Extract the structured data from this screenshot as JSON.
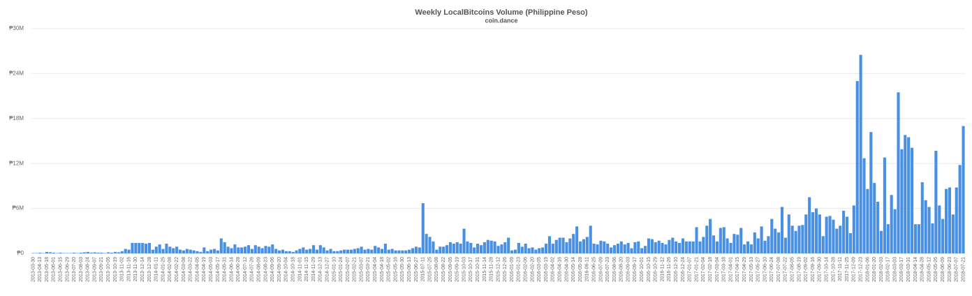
{
  "chart_data": {
    "type": "bar",
    "title": "Weekly LocalBitcoins Volume (Philippine Peso)",
    "subtitle": "coin.dance",
    "color": "#4a90e2",
    "grid": true,
    "ylim": [
      0,
      30000000
    ],
    "yticks": [
      {
        "value": 0,
        "label": "₱0"
      },
      {
        "value": 6000000,
        "label": "₱6M"
      },
      {
        "value": 12000000,
        "label": "₱12M"
      },
      {
        "value": 18000000,
        "label": "₱18M"
      },
      {
        "value": 24000000,
        "label": "₱24M"
      },
      {
        "value": 30000000,
        "label": "₱30M"
      }
    ],
    "categories": [
      "2013-03-30",
      null,
      "2013-04-13",
      null,
      "2013-05-18",
      null,
      "2013-06-01",
      null,
      "2013-06-15",
      null,
      "2013-06-29",
      null,
      "2013-07-20",
      null,
      "2013-08-03",
      null,
      "2013-08-24",
      null,
      "2013-09-07",
      null,
      "2013-09-21",
      null,
      "2013-10-05",
      null,
      "2013-10-19",
      null,
      "2013-11-02",
      null,
      "2013-11-16",
      null,
      "2013-11-30",
      null,
      "2013-12-14",
      null,
      "2013-12-28",
      null,
      "2014-01-11",
      null,
      "2014-01-25",
      null,
      "2014-02-08",
      null,
      "2014-02-22",
      null,
      "2014-03-08",
      null,
      "2014-03-22",
      null,
      "2014-04-05",
      null,
      "2014-04-19",
      null,
      "2014-05-03",
      null,
      "2014-05-17",
      null,
      "2014-05-31",
      null,
      "2014-06-14",
      null,
      "2014-06-28",
      null,
      "2014-07-12",
      null,
      "2014-07-26",
      null,
      "2014-08-09",
      null,
      "2014-08-23",
      null,
      "2014-09-06",
      null,
      "2014-09-20",
      null,
      "2014-10-04",
      null,
      "2014-10-18",
      null,
      "2014-11-01",
      null,
      "2014-11-15",
      null,
      "2014-11-29",
      null,
      "2014-12-13",
      null,
      "2014-12-27",
      null,
      "2015-01-10",
      null,
      "2015-01-24",
      null,
      "2015-02-07",
      null,
      "2015-02-21",
      null,
      "2015-03-07",
      null,
      "2015-03-21",
      null,
      "2015-04-04",
      null,
      "2015-04-18",
      null,
      "2015-05-02",
      null,
      "2015-05-16",
      null,
      "2015-05-30",
      null,
      "2015-06-13",
      null,
      "2015-06-27",
      null,
      "2015-07-11",
      null,
      "2015-07-25",
      null,
      "2015-08-08",
      null,
      "2015-08-22",
      null,
      "2015-09-05",
      null,
      "2015-09-19",
      null,
      "2015-10-03",
      null,
      "2015-10-17",
      null,
      "2015-10-31",
      null,
      "2015-11-14",
      null,
      "2015-11-28",
      null,
      "2015-12-12",
      null,
      "2015-12-26",
      null,
      "2016-01-09",
      null,
      "2016-01-23",
      null,
      "2016-02-06",
      null,
      "2016-02-20",
      null,
      "2016-03-05",
      null,
      "2016-03-19",
      null,
      "2016-04-02",
      null,
      "2016-04-16",
      null,
      "2016-04-30",
      null,
      "2016-05-14",
      null,
      "2016-05-28",
      null,
      "2016-06-11",
      null,
      "2016-06-25",
      null,
      "2016-07-09",
      null,
      "2016-07-23",
      null,
      "2016-08-06",
      null,
      "2016-08-20",
      null,
      "2016-09-03",
      null,
      "2016-09-17",
      null,
      "2016-10-01",
      null,
      "2016-10-15",
      null,
      "2016-10-29",
      null,
      "2016-11-12",
      null,
      "2016-11-26",
      null,
      "2016-12-10",
      null,
      "2016-12-24",
      null,
      "2017-01-07",
      null,
      "2017-01-21",
      null,
      "2017-02-04",
      null,
      "2017-02-18",
      null,
      "2017-03-04",
      null,
      "2017-03-18",
      null,
      "2017-04-01",
      null,
      "2017-04-15",
      null,
      "2017-04-29",
      null,
      "2017-05-13",
      null,
      "2017-05-27",
      null,
      "2017-06-10",
      null,
      "2017-06-24",
      null,
      "2017-07-08",
      null,
      "2017-07-22",
      null,
      "2017-08-05",
      null,
      "2017-08-19",
      null,
      "2017-09-02",
      null,
      "2017-09-16",
      null,
      "2017-09-30",
      null,
      "2017-10-14",
      null,
      "2017-10-28",
      null,
      "2017-11-11",
      null,
      "2017-11-25",
      null,
      "2017-12-09",
      null,
      "2017-12-23",
      null,
      "2018-01-06",
      null,
      "2018-01-20",
      null,
      "2018-02-03",
      null,
      "2018-02-17",
      null,
      "2018-03-03",
      null,
      "2018-03-17",
      null,
      "2018-03-31",
      null,
      "2018-04-14",
      null,
      "2018-04-28",
      null,
      "2018-05-12",
      null,
      "2018-05-26",
      null,
      "2018-06-09",
      null,
      "2018-06-23",
      null,
      "2018-07-07",
      null,
      "2018-07-21"
    ],
    "values": [
      50000,
      50000,
      100000,
      50000,
      200000,
      150000,
      100000,
      50000,
      100000,
      50000,
      50000,
      50000,
      100000,
      50000,
      100000,
      150000,
      200000,
      100000,
      150000,
      100000,
      100000,
      50000,
      150000,
      100000,
      200000,
      150000,
      300000,
      600000,
      500000,
      1400000,
      1400000,
      1400000,
      1400000,
      1300000,
      1400000,
      500000,
      900000,
      1200000,
      600000,
      1300000,
      900000,
      700000,
      900000,
      500000,
      400000,
      600000,
      500000,
      400000,
      300000,
      200000,
      800000,
      300000,
      500000,
      600000,
      400000,
      2000000,
      1500000,
      900000,
      700000,
      1200000,
      800000,
      800000,
      900000,
      1100000,
      600000,
      1100000,
      900000,
      700000,
      1000000,
      900000,
      1200000,
      600000,
      400000,
      500000,
      300000,
      300000,
      200000,
      400000,
      600000,
      800000,
      500000,
      600000,
      1100000,
      500000,
      1100000,
      800000,
      400000,
      600000,
      300000,
      300000,
      400000,
      500000,
      500000,
      500000,
      600000,
      700000,
      900000,
      500000,
      600000,
      500000,
      1000000,
      800000,
      600000,
      1300000,
      500000,
      600000,
      400000,
      400000,
      400000,
      400000,
      500000,
      700000,
      900000,
      800000,
      6700000,
      2600000,
      2200000,
      1600000,
      500000,
      900000,
      900000,
      1100000,
      1500000,
      1300000,
      1500000,
      1300000,
      3300000,
      1600000,
      1400000,
      800000,
      1300000,
      1100000,
      1500000,
      1800000,
      1700000,
      1600000,
      1000000,
      1200000,
      1500000,
      2100000,
      400000,
      500000,
      1400000,
      900000,
      1300000,
      700000,
      800000,
      500000,
      700000,
      800000,
      1300000,
      2300000,
      1300000,
      1800000,
      2100000,
      2100000,
      1500000,
      2000000,
      2600000,
      3600000,
      1600000,
      1900000,
      2200000,
      3700000,
      1300000,
      1200000,
      1700000,
      1600000,
      1300000,
      800000,
      1100000,
      1300000,
      1600000,
      1200000,
      1400000,
      700000,
      1500000,
      1600000,
      700000,
      1000000,
      2000000,
      1900000,
      1500000,
      1700000,
      1400000,
      1200000,
      1800000,
      2100000,
      1600000,
      1400000,
      2000000,
      1600000,
      1600000,
      1600000,
      3500000,
      1600000,
      2200000,
      3700000,
      4600000,
      2400000,
      1600000,
      3400000,
      3500000,
      2000000,
      1400000,
      2600000,
      2500000,
      3400000,
      1200000,
      1600000,
      1200000,
      2800000,
      2000000,
      3600000,
      1700000,
      2300000,
      4600000,
      3300000,
      2800000,
      6200000,
      2100000,
      5200000,
      3700000,
      3000000,
      3700000,
      3800000,
      5200000,
      7500000,
      5500000,
      6000000,
      5200000,
      2300000,
      4900000,
      5000000,
      4500000,
      3300000,
      3700000,
      5700000,
      4900000,
      2700000,
      6400000,
      23000000,
      26500000,
      12700000,
      8600000,
      16200000,
      9400000,
      6900000,
      3000000,
      12800000,
      3900000,
      7800000,
      5900000,
      21500000,
      13900000,
      15800000,
      15500000,
      14100000,
      3900000,
      3900000,
      9500000,
      7100000,
      6200000,
      4000000,
      13700000,
      6400000,
      4600000,
      8600000,
      8800000,
      5200000,
      8800000,
      11800000,
      17000000
    ]
  }
}
